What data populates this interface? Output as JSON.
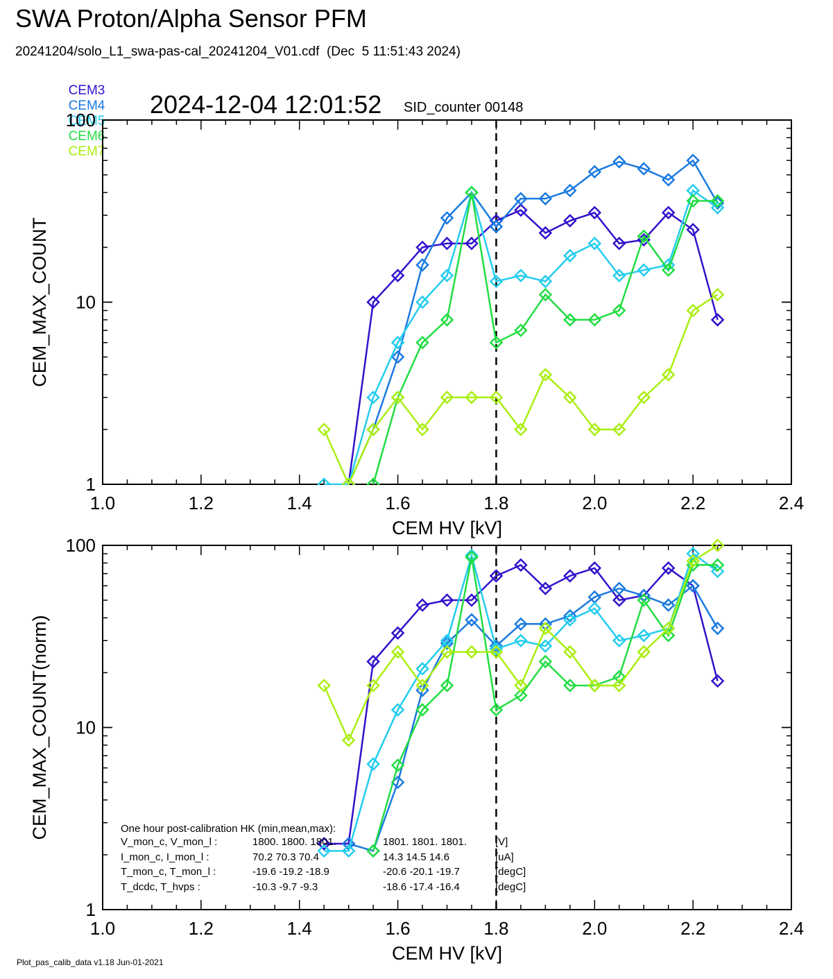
{
  "header": {
    "title": "SWA Proton/Alpha Sensor PFM",
    "subtitle": "20241204/solo_L1_swa-pas-cal_20241204_V01.cdf  (Dec  5 11:51:43 2024)",
    "timestamp": "2024-12-04 12:01:52",
    "sid": "SID_counter 00148"
  },
  "legend": [
    {
      "name": "CEM3",
      "color": "#3311cc"
    },
    {
      "name": "CEM4",
      "color": "#1a7ae0"
    },
    {
      "name": "CEM5",
      "color": "#22ccee"
    },
    {
      "name": "CEM6",
      "color": "#22dd44"
    },
    {
      "name": "CEM7",
      "color": "#aaee11"
    }
  ],
  "footer": "Plot_pas_calib_data v1.18 Jun-01-2021",
  "hk": {
    "title": "One hour post-calibration HK (min,mean,max):",
    "rows": [
      {
        "label": "V_mon_c, V_mon_l :",
        "a": "1800.  1800.  1801.",
        "b": "1801.  1801.  1801.",
        "unit": "[V]"
      },
      {
        "label": "I_mon_c,  I_mon_l :",
        "a": "70.2   70.3   70.4",
        "b": "14.3   14.5   14.6",
        "unit": "[uA]"
      },
      {
        "label": "T_mon_c, T_mon_l :",
        "a": "-19.6  -19.2  -18.9",
        "b": "-20.6  -20.1  -19.7",
        "unit": "[degC]"
      },
      {
        "label": "T_dcdc,    T_hvps :",
        "a": "-10.3   -9.7   -9.3",
        "b": "-18.6  -17.4  -16.4",
        "unit": "[degC]"
      }
    ]
  },
  "chart_data": [
    {
      "type": "line",
      "xlabel": "CEM HV [kV]",
      "ylabel": "CEM_MAX_COUNT",
      "xlim": [
        1.0,
        2.4
      ],
      "ylim": [
        1,
        100
      ],
      "yscale": "log",
      "xticks": [
        "1.0",
        "1.2",
        "1.4",
        "1.6",
        "1.8",
        "2.0",
        "2.2",
        "2.4"
      ],
      "yticks": [
        "1",
        "10",
        "100"
      ],
      "vline": 1.8,
      "x": [
        1.45,
        1.5,
        1.55,
        1.6,
        1.65,
        1.7,
        1.75,
        1.8,
        1.85,
        1.9,
        1.95,
        2.0,
        2.05,
        2.1,
        2.15,
        2.2,
        2.25
      ],
      "series": [
        {
          "name": "CEM3",
          "values": [
            null,
            1,
            10,
            14,
            20,
            21,
            21,
            28,
            32,
            24,
            28,
            31,
            21,
            22,
            31,
            25,
            8
          ]
        },
        {
          "name": "CEM4",
          "values": [
            null,
            1,
            2,
            5,
            16,
            29,
            40,
            26,
            37,
            37,
            41,
            52,
            59,
            54,
            47,
            60,
            35
          ]
        },
        {
          "name": "CEM5",
          "values": [
            1,
            1,
            3,
            6,
            10,
            14,
            40,
            13,
            14,
            13,
            18,
            21,
            14,
            15,
            16,
            41,
            33
          ]
        },
        {
          "name": "CEM6",
          "values": [
            null,
            null,
            1,
            3,
            6,
            8,
            40,
            6,
            7,
            11,
            8,
            8,
            9,
            23,
            15,
            36,
            36
          ]
        },
        {
          "name": "CEM7",
          "values": [
            2,
            1,
            2,
            3,
            2,
            3,
            3,
            3,
            2,
            4,
            3,
            2,
            2,
            3,
            4,
            9,
            11
          ]
        }
      ]
    },
    {
      "type": "line",
      "xlabel": "CEM HV [kV]",
      "ylabel": "CEM_MAX_COUNT(norm)",
      "xlim": [
        1.0,
        2.4
      ],
      "ylim": [
        1,
        100
      ],
      "yscale": "log",
      "xticks": [
        "1.0",
        "1.2",
        "1.4",
        "1.6",
        "1.8",
        "2.0",
        "2.2",
        "2.4"
      ],
      "yticks": [
        "1",
        "10",
        "100"
      ],
      "vline": 1.8,
      "x": [
        1.45,
        1.5,
        1.55,
        1.6,
        1.65,
        1.7,
        1.75,
        1.8,
        1.85,
        1.9,
        1.95,
        2.0,
        2.05,
        2.1,
        2.15,
        2.2,
        2.25
      ],
      "series": [
        {
          "name": "CEM3",
          "values": [
            2.3,
            2.3,
            23,
            33,
            47,
            50,
            50,
            68,
            78,
            58,
            68,
            75,
            50,
            53,
            75,
            60,
            18
          ]
        },
        {
          "name": "CEM4",
          "values": [
            null,
            2.3,
            2.1,
            5,
            16,
            29,
            39,
            28,
            37,
            37,
            41,
            52,
            58,
            53,
            47,
            60,
            35
          ]
        },
        {
          "name": "CEM5",
          "values": [
            2.1,
            2.1,
            6.3,
            12.5,
            21,
            30,
            88,
            27,
            30,
            28,
            39,
            45,
            30,
            32,
            35,
            90,
            72
          ]
        },
        {
          "name": "CEM6",
          "values": [
            null,
            null,
            2.1,
            6.2,
            12.5,
            17,
            86,
            12.5,
            15,
            23,
            17,
            17,
            19,
            50,
            32,
            78,
            78
          ]
        },
        {
          "name": "CEM7",
          "values": [
            17,
            8.5,
            17,
            26,
            17,
            26,
            26,
            26,
            17,
            35,
            26,
            17,
            17,
            26,
            35,
            82,
            100
          ]
        }
      ]
    }
  ]
}
